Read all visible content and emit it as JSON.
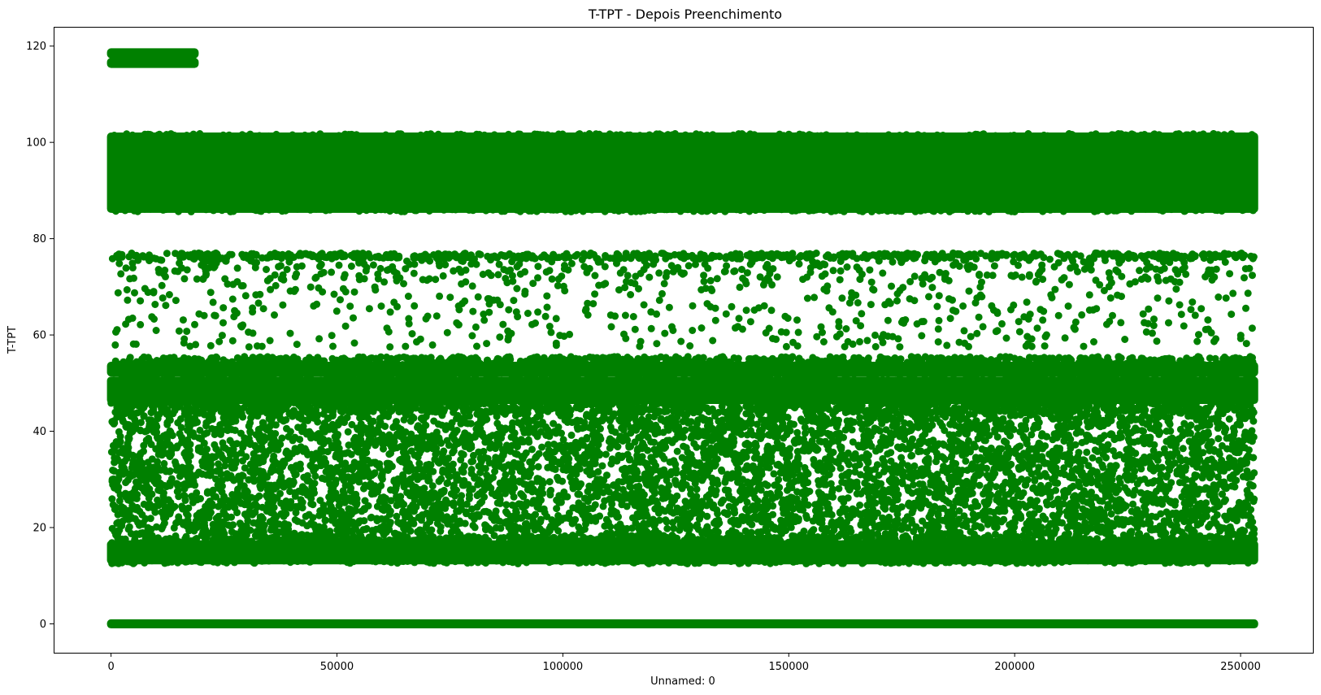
{
  "chart_data": {
    "type": "scatter",
    "title": "T-TPT - Depois Preenchimento",
    "xlabel": "Unnamed: 0",
    "ylabel": "T-TPT",
    "xlim": [
      -12700,
      266000
    ],
    "ylim": [
      -6,
      124
    ],
    "x_ticks": [
      0,
      50000,
      100000,
      150000,
      200000,
      250000
    ],
    "x_tick_labels": [
      "0",
      "50000",
      "100000",
      "150000",
      "200000",
      "250000"
    ],
    "y_ticks": [
      0,
      20,
      40,
      60,
      80,
      100,
      120
    ],
    "y_tick_labels": [
      "0",
      "20",
      "40",
      "60",
      "80",
      "100",
      "120"
    ],
    "grid": false,
    "marker_color": "#008000",
    "series": [
      {
        "points_description_bands": [
          {
            "x_range": [
              0,
              18500
            ],
            "y_values": [
              116.5,
              118.5
            ],
            "density": "solid"
          },
          {
            "x_range": [
              0,
              253000
            ],
            "y_range": [
              85.5,
              101.5
            ],
            "density": "solid"
          },
          {
            "x_range": [
              0,
              253000
            ],
            "y_range": [
              57,
              77
            ],
            "density": "sparse"
          },
          {
            "x_range": [
              0,
              253000
            ],
            "y_range": [
              12.5,
              55
            ],
            "density": "medium"
          },
          {
            "x_range": [
              0,
              253000
            ],
            "y_values": [
              0
            ],
            "density": "solid"
          }
        ]
      }
    ]
  }
}
